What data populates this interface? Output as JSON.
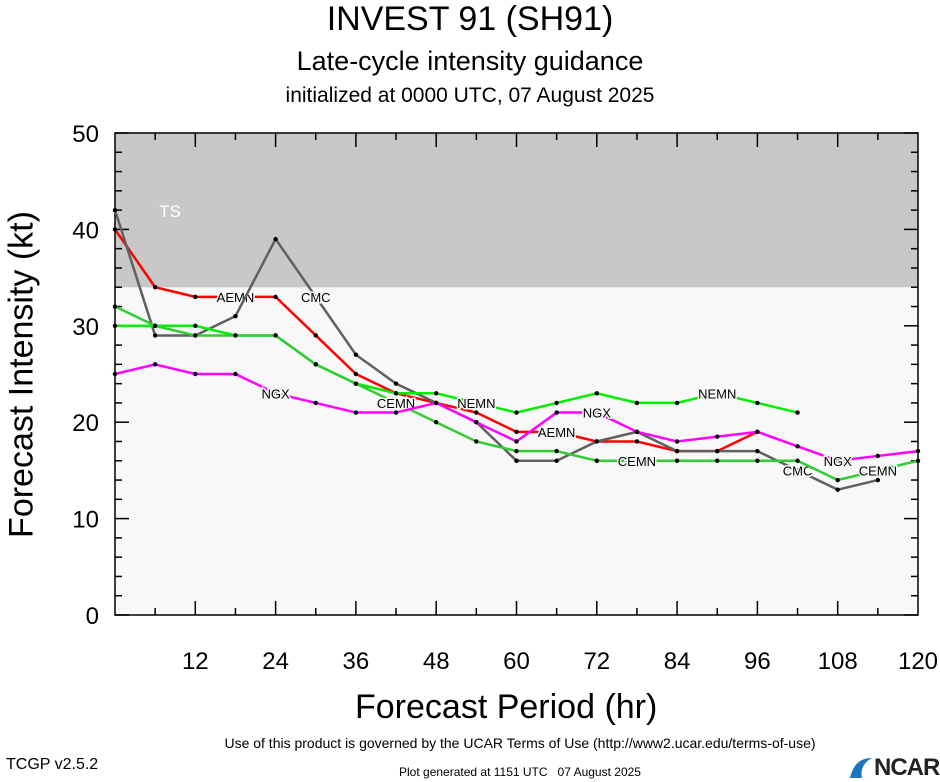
{
  "header": {
    "title": "INVEST 91 (SH91)",
    "subtitle": "Late-cycle intensity guidance",
    "init": "initialized at 0000 UTC, 07 August 2025"
  },
  "footer": {
    "version": "TCGP v2.5.2",
    "terms": "Use of this product is governed by the UCAR Terms of Use (http://www2.ucar.edu/terms-of-use)",
    "generated": "Plot generated at 1151 UTC   07 August 2025",
    "logo": "NCAR"
  },
  "chart_data": {
    "type": "line",
    "title": "INVEST 91 (SH91)",
    "xlabel": "Forecast Period (hr)",
    "ylabel": "Forecast Intensity (kt)",
    "xlim": [
      0,
      120
    ],
    "ylim": [
      0,
      50
    ],
    "xticks": [
      12,
      24,
      36,
      48,
      60,
      72,
      84,
      96,
      108,
      120
    ],
    "yticks": [
      0,
      10,
      20,
      30,
      40,
      50
    ],
    "bands": [
      {
        "label": "TS",
        "from": 34,
        "to": 50,
        "color": "#c8c8c8"
      }
    ],
    "x": [
      0,
      6,
      12,
      18,
      24,
      30,
      36,
      42,
      48,
      54,
      60,
      66,
      72,
      78,
      84,
      90,
      96,
      102,
      108,
      114,
      120
    ],
    "series": [
      {
        "name": "AEMN",
        "color": "#ff0000",
        "values": [
          40,
          34,
          33,
          33,
          33,
          29,
          25,
          23,
          22,
          21,
          19,
          19,
          18,
          18,
          17,
          17,
          19,
          null,
          null,
          null,
          null
        ]
      },
      {
        "name": "CMC",
        "color": "#606060",
        "values": [
          42,
          29,
          29,
          31,
          39,
          33,
          27,
          24,
          22,
          20,
          16,
          16,
          18,
          19,
          17,
          17,
          17,
          15,
          13,
          14,
          null
        ]
      },
      {
        "name": "NEMN",
        "color": "#00ee00",
        "values": [
          30,
          30,
          30,
          29,
          29,
          26,
          24,
          23,
          23,
          22,
          21,
          22,
          23,
          22,
          22,
          23,
          22,
          21,
          null,
          null,
          null
        ]
      },
      {
        "name": "CEMN",
        "color": "#33cc33",
        "values": [
          32,
          30,
          29,
          29,
          29,
          26,
          24,
          22,
          20,
          18,
          17,
          17,
          16,
          16,
          16,
          16,
          16,
          16,
          14,
          15,
          16
        ]
      },
      {
        "name": "NGX",
        "color": "#ff00ff",
        "values": [
          25,
          26,
          25,
          25,
          23,
          22,
          21,
          21,
          22,
          20,
          18,
          21,
          21,
          19,
          18,
          18.5,
          19,
          17.5,
          16,
          16.5,
          17
        ]
      }
    ]
  }
}
